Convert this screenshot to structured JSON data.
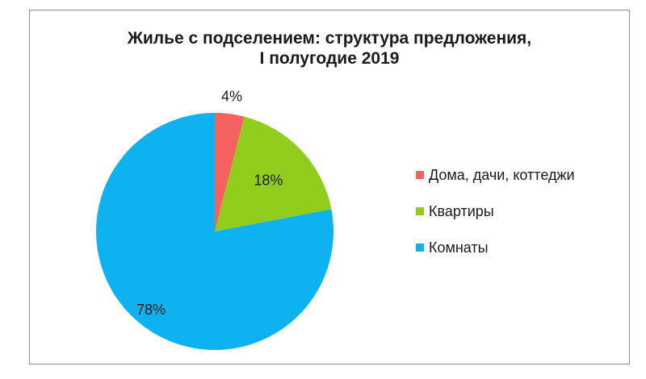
{
  "chart_data": {
    "type": "pie",
    "title": [
      "Жилье с подселением: структура предложения,",
      "I полугодие 2019"
    ],
    "start_angle_deg": 0,
    "direction": "clockwise",
    "slices": [
      {
        "label": "Дома, дачи, коттеджи",
        "value": 4,
        "display": "4%",
        "color": "#f4625f"
      },
      {
        "label": "Квартиры",
        "value": 18,
        "display": "18%",
        "color": "#92cd1d"
      },
      {
        "label": "Комнаты",
        "value": 78,
        "display": "78%",
        "color": "#0fb2f0"
      }
    ],
    "legend_position": "right"
  }
}
